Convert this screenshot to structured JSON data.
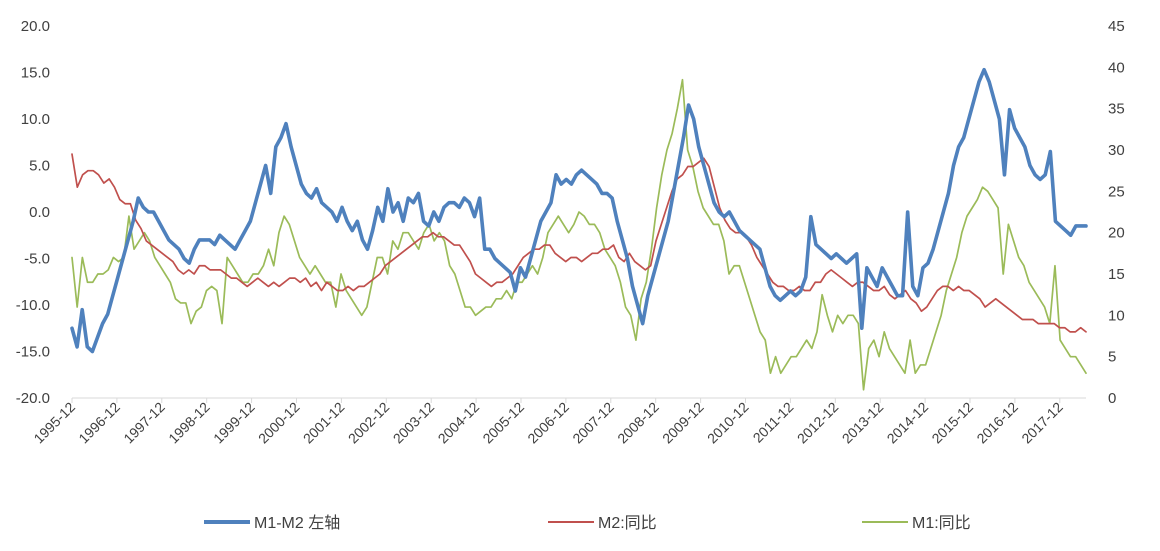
{
  "chart_data": {
    "type": "line",
    "title": "",
    "y_left": {
      "min": -20,
      "max": 20,
      "step": 5,
      "ticks": [
        "20.0",
        "15.0",
        "10.0",
        "5.0",
        "0.0",
        "-5.0",
        "-10.0",
        "-15.0",
        "-20.0"
      ]
    },
    "y_right": {
      "min": 0,
      "max": 45,
      "step": 5,
      "ticks": [
        "45",
        "40",
        "35",
        "30",
        "25",
        "20",
        "15",
        "10",
        "5",
        "0"
      ]
    },
    "x_ticks": [
      "1995-12",
      "1996-12",
      "1997-12",
      "1998-12",
      "1999-12",
      "2000-12",
      "2001-12",
      "2002-12",
      "2003-12",
      "2004-12",
      "2005-12",
      "2006-12",
      "2007-12",
      "2008-12",
      "2009-12",
      "2010-12",
      "2011-12",
      "2012-12",
      "2013-12",
      "2014-12",
      "2015-12",
      "2016-12",
      "2017-12"
    ],
    "x_start": "1995-12",
    "x_end": "2018-07",
    "grid": false,
    "legend_position": "bottom",
    "colors": {
      "m1_m2": "#4F81BD",
      "m2": "#C0504D",
      "m1": "#9BBB59"
    },
    "series": [
      {
        "name": "M1-M2 左轴",
        "key": "m1_m2",
        "axis": "left",
        "values": [
          -12.5,
          -14.5,
          -10.5,
          -14.5,
          -15,
          -13.5,
          -12,
          -11,
          -9,
          -7,
          -5,
          -3,
          -1,
          1.5,
          0.5,
          0,
          0,
          -1,
          -2,
          -3,
          -3.5,
          -4,
          -5,
          -5.5,
          -4,
          -3,
          -3,
          -3,
          -3.5,
          -2.5,
          -3,
          -3.5,
          -4,
          -3,
          -2,
          -1,
          1,
          3,
          5,
          2,
          7,
          8,
          9.5,
          7,
          5,
          3,
          2,
          1.5,
          2.5,
          1,
          0.5,
          0,
          -1,
          0.5,
          -1,
          -2,
          -1,
          -3,
          -4,
          -2,
          0.5,
          -1,
          2.5,
          0,
          1,
          -1,
          1.5,
          1,
          2,
          -1,
          -1.5,
          0,
          -1,
          0.5,
          1,
          1,
          0.5,
          1.5,
          1,
          -0.5,
          1.5,
          -4,
          -4,
          -5,
          -5.5,
          -6,
          -6.5,
          -8.5,
          -6,
          -7,
          -5,
          -3,
          -1,
          0,
          1,
          4,
          3,
          3.5,
          3,
          4,
          4.5,
          4,
          3.5,
          3,
          2,
          2,
          1.5,
          -1,
          -3,
          -5,
          -8,
          -10,
          -12,
          -9,
          -7,
          -5,
          -3,
          -1,
          2,
          5,
          8,
          11.5,
          10,
          7,
          5,
          3,
          1,
          0,
          -0.5,
          0,
          -1,
          -2,
          -2.5,
          -3,
          -3.5,
          -4,
          -6,
          -8,
          -9,
          -9.5,
          -9,
          -8.5,
          -9,
          -8.5,
          -7,
          -0.5,
          -3.5,
          -4,
          -4.5,
          -5,
          -4.5,
          -5,
          -5.5,
          -5,
          -4.5,
          -12.5,
          -6,
          -7,
          -8,
          -6,
          -7,
          -8,
          -9,
          -9,
          0,
          -8,
          -9,
          -6,
          -5.5,
          -4,
          -2,
          0,
          2,
          5,
          7,
          8,
          10,
          12,
          14,
          15.3,
          14,
          12,
          10,
          4,
          11,
          9,
          8,
          7,
          5,
          4,
          3.5,
          4,
          6.5,
          -1,
          -1.5,
          -2,
          -2.5,
          -1.5,
          -1.5,
          -1.5
        ]
      },
      {
        "name": "M2:同比",
        "key": "m2",
        "axis": "right",
        "values": [
          29.5,
          25.5,
          27,
          27.5,
          27.5,
          27,
          26,
          26.5,
          25.5,
          24,
          23.5,
          23.5,
          21.5,
          20.5,
          19,
          18.5,
          18,
          17.5,
          17,
          16.5,
          15.5,
          15,
          15.5,
          15,
          16,
          16,
          15.5,
          15.5,
          15.5,
          15,
          14.5,
          14.5,
          14,
          13.5,
          14,
          14.5,
          14,
          13.5,
          14,
          13.5,
          14,
          14.5,
          14.5,
          14,
          14.5,
          13.5,
          14,
          13,
          14,
          13.5,
          13,
          13,
          13.5,
          13,
          13.5,
          13.5,
          14,
          14.5,
          15,
          16,
          16.5,
          17,
          17.5,
          18,
          18.5,
          19,
          19.5,
          19.5,
          20,
          19.5,
          19.5,
          19,
          18.5,
          18.5,
          17.5,
          16.5,
          15,
          14.5,
          14,
          13.5,
          14,
          14,
          14.5,
          15,
          16,
          17,
          17.5,
          18,
          18,
          18.5,
          18.5,
          17.5,
          17,
          16.5,
          17,
          17,
          16.5,
          17,
          17.5,
          17.5,
          18,
          18,
          18.5,
          17,
          16.5,
          17.5,
          16.5,
          16,
          15.5,
          16,
          19,
          21,
          23,
          25,
          26.5,
          27,
          28,
          28,
          28.5,
          29,
          28,
          25.5,
          23,
          21.5,
          20.5,
          20,
          20,
          19.5,
          18.5,
          17,
          16,
          15,
          14,
          13.5,
          13.5,
          13,
          13,
          13.5,
          13,
          13,
          14,
          14,
          15,
          15.5,
          15,
          14.5,
          14,
          13.5,
          14,
          14,
          13.5,
          13,
          13,
          13.5,
          12.5,
          12,
          12.5,
          13,
          12,
          11.5,
          10.5,
          11,
          12,
          13,
          13.5,
          13.5,
          13,
          13.5,
          13,
          13,
          12.5,
          12,
          11,
          11.5,
          12,
          11.5,
          11,
          10.5,
          10,
          9.5,
          9.5,
          9.5,
          9,
          9,
          9,
          9,
          8.5,
          8.5,
          8,
          8,
          8.5,
          8
        ]
      },
      {
        "name": "M1:同比",
        "key": "m1",
        "axis": "right",
        "values": [
          17,
          11,
          17,
          14,
          14,
          15,
          15,
          15.5,
          17,
          16.5,
          17,
          22,
          18,
          19,
          20,
          19,
          17,
          16,
          15,
          14,
          12,
          11.5,
          11.5,
          9,
          10.5,
          11,
          13,
          13.5,
          13,
          9,
          17,
          16,
          15,
          14,
          14,
          15,
          15,
          16,
          18,
          16,
          20,
          22,
          21,
          19,
          17,
          16,
          15,
          16,
          15,
          14,
          14,
          11,
          15,
          13,
          12,
          11,
          10,
          11,
          14,
          17,
          17,
          15,
          19,
          18,
          20,
          20,
          19,
          18,
          20,
          21,
          19,
          20,
          19,
          16,
          15,
          13,
          11,
          11,
          10,
          10.5,
          11,
          11,
          12,
          12,
          13,
          12,
          14,
          14,
          15,
          16,
          15,
          17,
          20,
          21,
          22,
          21,
          20,
          21,
          22.5,
          22,
          21,
          21,
          20,
          18,
          17,
          16,
          14,
          11,
          10,
          7,
          12,
          14,
          18,
          23,
          27,
          30,
          32,
          35,
          38.5,
          30,
          28,
          25,
          23,
          22,
          21,
          21,
          19,
          15,
          16,
          16,
          14,
          12,
          10,
          8,
          7,
          3,
          5,
          3,
          4,
          5,
          5,
          6,
          7,
          6,
          8,
          12.5,
          10,
          8,
          10,
          9,
          10,
          10,
          9,
          1,
          6,
          7,
          5,
          8,
          6,
          5,
          4,
          3,
          7,
          3,
          4,
          4,
          6,
          8,
          10,
          13,
          15,
          17,
          20,
          22,
          23,
          24,
          25.5,
          25,
          24,
          23,
          15,
          21,
          19,
          17,
          16,
          14,
          13,
          12,
          11,
          9,
          16,
          7,
          6,
          5,
          5,
          4,
          3
        ]
      }
    ]
  }
}
